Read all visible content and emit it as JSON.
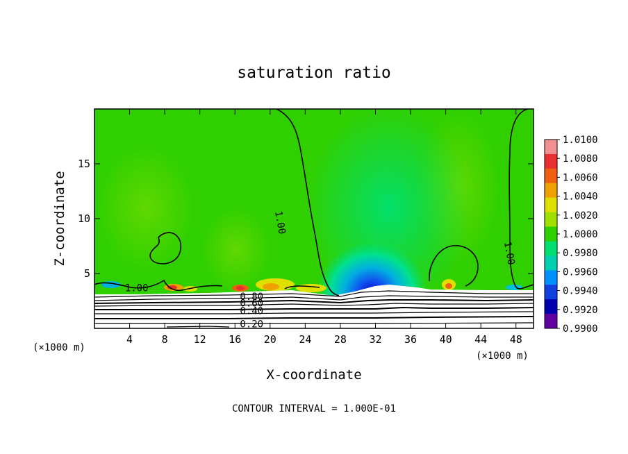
{
  "chart_data": {
    "type": "contour",
    "title": "saturation ratio",
    "xlabel": "X-coordinate",
    "ylabel": "Z-coordinate",
    "x_unit": "(×1000 m)",
    "x_unit_right": "(×1000 m)",
    "footer": "CONTOUR INTERVAL = 1.000E-01",
    "xlim": [
      0,
      50
    ],
    "ylim": [
      0,
      20
    ],
    "x_ticks": [
      4,
      8,
      12,
      16,
      20,
      24,
      28,
      32,
      36,
      40,
      44,
      48
    ],
    "y_ticks": [
      5,
      10,
      15
    ],
    "colorbar": {
      "levels": [
        "1.0100",
        "1.0080",
        "1.0060",
        "1.0040",
        "1.0020",
        "1.0000",
        "0.9980",
        "0.9960",
        "0.9940",
        "0.9920",
        "0.9900"
      ],
      "colors": [
        "#f09090",
        "#e83030",
        "#f06010",
        "#f0a000",
        "#e0e000",
        "#a0e000",
        "#30d000",
        "#00e070",
        "#00d0b0",
        "#0090ff",
        "#1040e0",
        "#0000b0",
        "#6000a0"
      ]
    },
    "contour_labels": [
      {
        "text": "1.00",
        "x": 20.8,
        "z": 9.6
      },
      {
        "text": "1.00",
        "x": 46.9,
        "z": 6.8
      },
      {
        "text": "1.00",
        "x": 4.8,
        "z": 3.4
      },
      {
        "text": "0.80",
        "x": 17.9,
        "z": 2.6
      },
      {
        "text": "0.60",
        "x": 17.9,
        "z": 2.0
      },
      {
        "text": "0.40",
        "x": 17.9,
        "z": 1.3
      },
      {
        "text": "0.20",
        "x": 17.9,
        "z": 0.1
      }
    ]
  }
}
